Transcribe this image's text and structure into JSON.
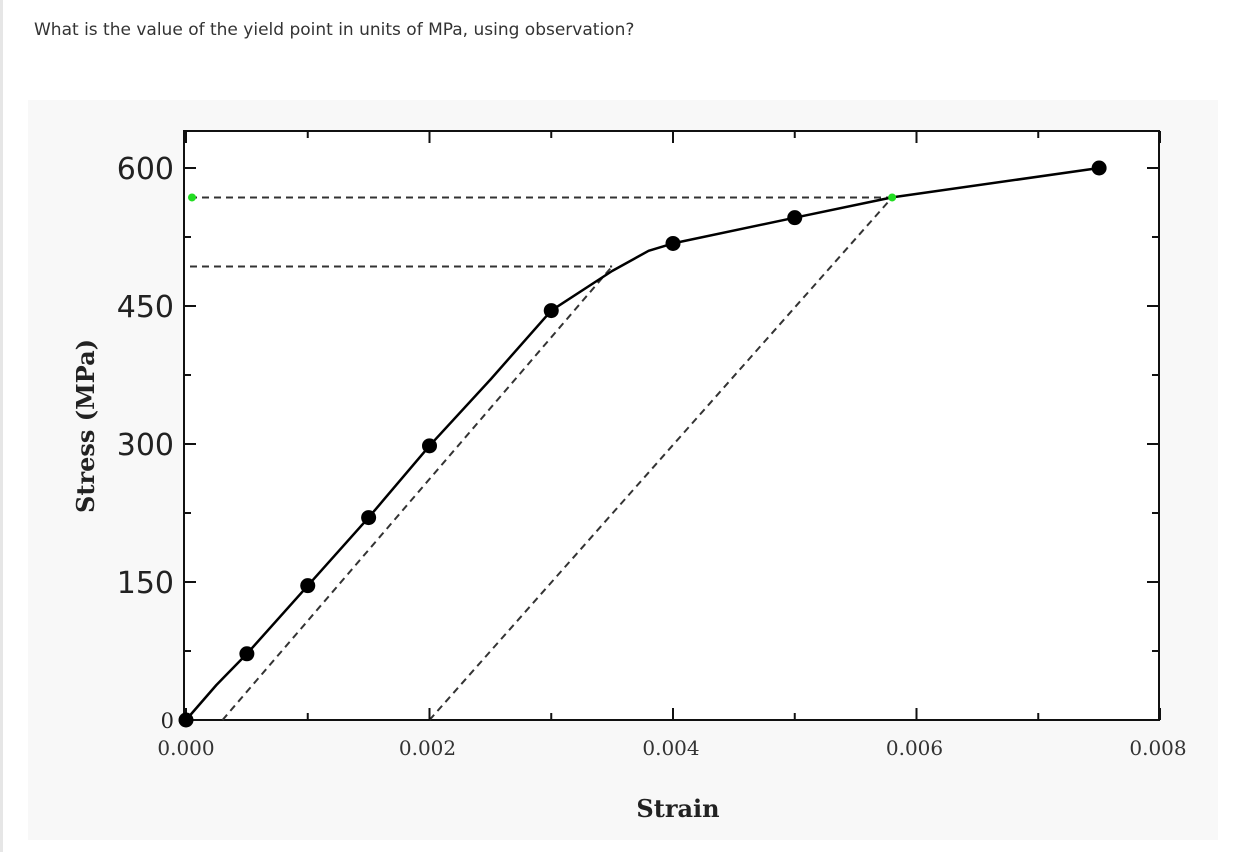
{
  "question": {
    "text": "What is the value of the yield point in units of MPa, using observation?"
  },
  "chart_data": {
    "type": "line",
    "xlabel": "Strain",
    "ylabel": "Stress (MPa)",
    "xlim": [
      0,
      0.008
    ],
    "ylim": [
      0,
      600
    ],
    "x_tick_labels": [
      "0.000",
      "0.002",
      "0.004",
      "0.006",
      "0.008"
    ],
    "x_ticks": [
      0,
      0.002,
      0.004,
      0.006,
      0.008
    ],
    "y_tick_labels": [
      "0",
      "150",
      "300",
      "450",
      "600"
    ],
    "y_ticks": [
      0,
      150,
      300,
      450,
      600
    ],
    "grid": false,
    "series": [
      {
        "style": "solid",
        "color": "#000000",
        "points": [
          {
            "x": 0.0,
            "y": 0
          },
          {
            "x": 0.0005,
            "y": 72
          },
          {
            "x": 0.001,
            "y": 146
          },
          {
            "x": 0.0015,
            "y": 220
          },
          {
            "x": 0.002,
            "y": 298
          },
          {
            "x": 0.003,
            "y": 445
          },
          {
            "x": 0.004,
            "y": 518
          },
          {
            "x": 0.005,
            "y": 546
          },
          {
            "x": 0.0075,
            "y": 600
          }
        ],
        "curve": [
          [
            0,
            0
          ],
          [
            0.00025,
            38
          ],
          [
            0.0005,
            72
          ],
          [
            0.001,
            146
          ],
          [
            0.0015,
            220
          ],
          [
            0.002,
            298
          ],
          [
            0.0025,
            370
          ],
          [
            0.003,
            445
          ],
          [
            0.0035,
            488
          ],
          [
            0.0038,
            510
          ],
          [
            0.004,
            518
          ],
          [
            0.005,
            546
          ],
          [
            0.0058,
            568
          ],
          [
            0.0075,
            600
          ]
        ]
      }
    ],
    "offset_lines": [
      {
        "x0": 0.0003,
        "y0": 0,
        "x1": 0.0035,
        "y1": 493
      },
      {
        "x0": 0.002,
        "y0": 0,
        "x1": 0.0058,
        "y1": 568
      }
    ],
    "reference_lines": [
      {
        "y": 568,
        "x_end": 0.0058
      },
      {
        "y": 493,
        "x_end": 0.0035
      }
    ],
    "highlight_points": [
      {
        "x": 0.0058,
        "y": 568,
        "color": "#22dd22"
      },
      {
        "x": 0.0,
        "y": 568,
        "color": "#22dd22"
      }
    ]
  }
}
